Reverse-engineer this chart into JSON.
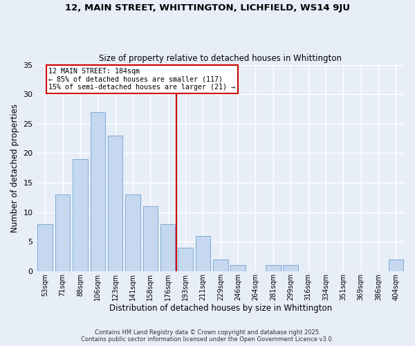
{
  "title": "12, MAIN STREET, WHITTINGTON, LICHFIELD, WS14 9JU",
  "subtitle": "Size of property relative to detached houses in Whittington",
  "xlabel": "Distribution of detached houses by size in Whittington",
  "ylabel": "Number of detached properties",
  "bar_values": [
    8,
    13,
    19,
    27,
    23,
    13,
    11,
    8,
    4,
    6,
    2,
    1,
    0,
    1,
    1,
    0,
    0,
    0,
    0,
    0,
    2
  ],
  "bar_labels": [
    "53sqm",
    "71sqm",
    "88sqm",
    "106sqm",
    "123sqm",
    "141sqm",
    "158sqm",
    "176sqm",
    "193sqm",
    "211sqm",
    "229sqm",
    "246sqm",
    "264sqm",
    "281sqm",
    "299sqm",
    "316sqm",
    "334sqm",
    "351sqm",
    "369sqm",
    "386sqm",
    "404sqm"
  ],
  "bar_color": "#c5d8f0",
  "bar_edge_color": "#7baad4",
  "bg_color": "#e8eef8",
  "grid_color": "#ffffff",
  "red_line_x": 7.5,
  "annotation_line1": "12 MAIN STREET: 184sqm",
  "annotation_line2": "← 85% of detached houses are smaller (117)",
  "annotation_line3": "15% of semi-detached houses are larger (21) →",
  "annotation_box_color": "#ffffff",
  "annotation_box_edge_color": "#cc0000",
  "footnote1": "Contains HM Land Registry data © Crown copyright and database right 2025.",
  "footnote2": "Contains public sector information licensed under the Open Government Licence v3.0.",
  "ylim": [
    0,
    35
  ],
  "yticks": [
    0,
    5,
    10,
    15,
    20,
    25,
    30,
    35
  ]
}
